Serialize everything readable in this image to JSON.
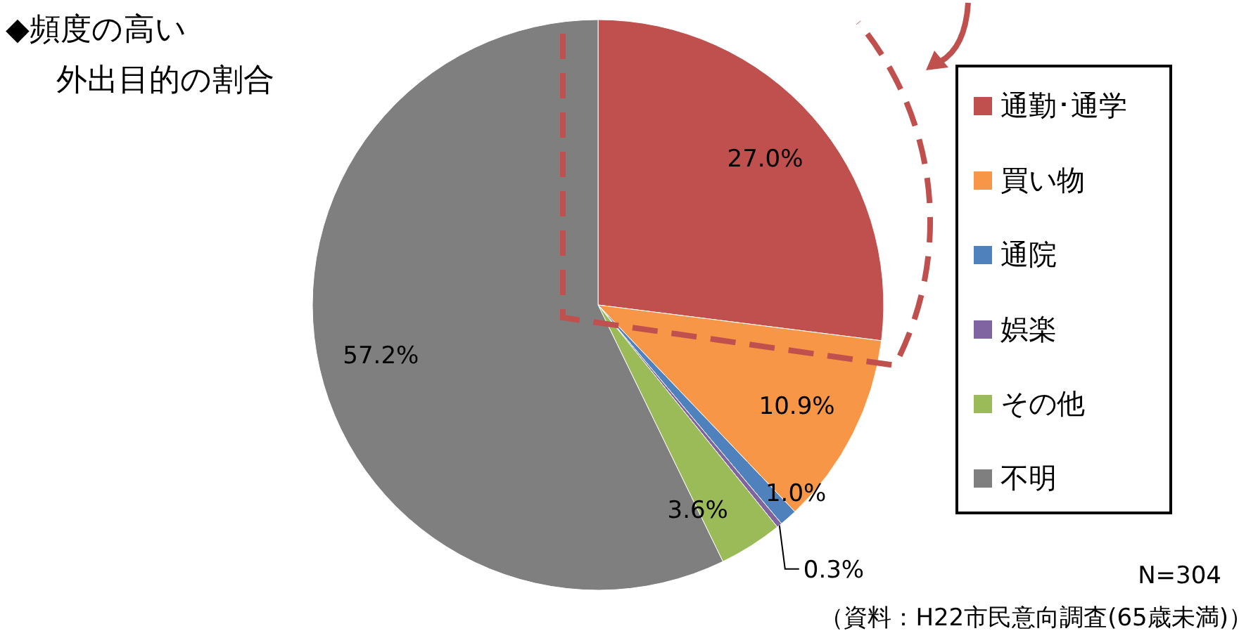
{
  "chart_data": {
    "type": "pie",
    "title": "◆頻度の高い",
    "subtitle": "外出目的の割合",
    "categories": [
      "通勤･通学",
      "買い物",
      "通院",
      "娯楽",
      "その他",
      "不明"
    ],
    "values": [
      27.0,
      10.9,
      1.0,
      0.3,
      3.6,
      57.2
    ],
    "colors": [
      "#c0504d",
      "#f79646",
      "#4f81bd",
      "#8064a2",
      "#9bbb59",
      "#7f7f7f"
    ],
    "value_labels": [
      "27.0%",
      "10.9%",
      "1.0%",
      "0.3%",
      "3.6%",
      "57.2%"
    ],
    "legend": "right",
    "annotations": [
      "N=304",
      "（資料：H22市民意向調査(65歳未満)）"
    ]
  }
}
